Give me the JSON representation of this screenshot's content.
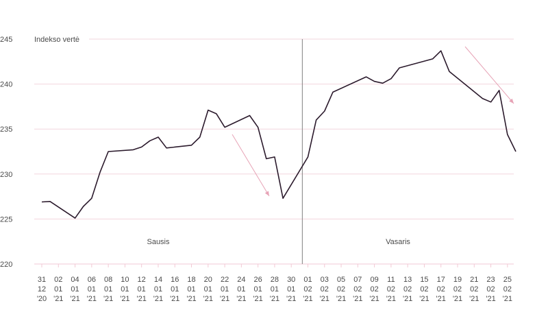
{
  "chart_data": {
    "type": "line",
    "ylabel": "Indekso vertė",
    "ylim": [
      220,
      245
    ],
    "y_ticks": [
      "220",
      "225",
      "230",
      "235",
      "240",
      "245"
    ],
    "grid": "horizontal",
    "x_tick_labels": [
      [
        "31",
        "12",
        "'20"
      ],
      [
        "02",
        "01",
        "'21"
      ],
      [
        "04",
        "01",
        "'21"
      ],
      [
        "06",
        "01",
        "'21"
      ],
      [
        "08",
        "01",
        "'21"
      ],
      [
        "10",
        "01",
        "'21"
      ],
      [
        "12",
        "01",
        "'21"
      ],
      [
        "14",
        "01",
        "'21"
      ],
      [
        "16",
        "01",
        "'21"
      ],
      [
        "18",
        "01",
        "'21"
      ],
      [
        "20",
        "01",
        "'21"
      ],
      [
        "22",
        "01",
        "'21"
      ],
      [
        "24",
        "01",
        "'21"
      ],
      [
        "26",
        "01",
        "'21"
      ],
      [
        "28",
        "01",
        "'21"
      ],
      [
        "30",
        "01",
        "'21"
      ],
      [
        "01",
        "02",
        "'21"
      ],
      [
        "03",
        "02",
        "'21"
      ],
      [
        "05",
        "02",
        "'21"
      ],
      [
        "07",
        "02",
        "'21"
      ],
      [
        "09",
        "02",
        "'21"
      ],
      [
        "11",
        "02",
        "'21"
      ],
      [
        "13",
        "02",
        "'21"
      ],
      [
        "15",
        "02",
        "'21"
      ],
      [
        "17",
        "02",
        "'21"
      ],
      [
        "19",
        "02",
        "'21"
      ],
      [
        "21",
        "02",
        "'21"
      ],
      [
        "23",
        "02",
        "'21"
      ],
      [
        "25",
        "02",
        "'21"
      ]
    ],
    "series": [
      {
        "points": [
          [
            "2020-12-31",
            226.9
          ],
          [
            "2021-01-01",
            226.95
          ],
          [
            "2021-01-04",
            225.1
          ],
          [
            "2021-01-05",
            226.4
          ],
          [
            "2021-01-06",
            227.3
          ],
          [
            "2021-01-07",
            230.2
          ],
          [
            "2021-01-08",
            232.5
          ],
          [
            "2021-01-11",
            232.7
          ],
          [
            "2021-01-12",
            233.0
          ],
          [
            "2021-01-13",
            233.7
          ],
          [
            "2021-01-14",
            234.1
          ],
          [
            "2021-01-15",
            232.9
          ],
          [
            "2021-01-18",
            233.2
          ],
          [
            "2021-01-19",
            234.1
          ],
          [
            "2021-01-20",
            237.1
          ],
          [
            "2021-01-21",
            236.7
          ],
          [
            "2021-01-22",
            235.2
          ],
          [
            "2021-01-25",
            236.5
          ],
          [
            "2021-01-26",
            235.2
          ],
          [
            "2021-01-27",
            231.7
          ],
          [
            "2021-01-28",
            231.9
          ],
          [
            "2021-01-29",
            227.3
          ],
          [
            "2021-02-01",
            231.9
          ],
          [
            "2021-02-02",
            236.0
          ],
          [
            "2021-02-03",
            237.0
          ],
          [
            "2021-02-04",
            239.1
          ],
          [
            "2021-02-08",
            240.8
          ],
          [
            "2021-02-09",
            240.3
          ],
          [
            "2021-02-10",
            240.1
          ],
          [
            "2021-02-11",
            240.6
          ],
          [
            "2021-02-12",
            241.8
          ],
          [
            "2021-02-16",
            242.8
          ],
          [
            "2021-02-17",
            243.7
          ],
          [
            "2021-02-18",
            241.4
          ],
          [
            "2021-02-22",
            238.4
          ],
          [
            "2021-02-23",
            238.0
          ],
          [
            "2021-02-24",
            239.3
          ],
          [
            "2021-02-25",
            234.4
          ],
          [
            "2021-02-26",
            232.5
          ]
        ]
      }
    ],
    "annotations": [
      {
        "text": "Sausis"
      },
      {
        "text": "Vasaris"
      }
    ],
    "colors": {
      "line": "#2b1a2c",
      "grid": "#f2d5dd",
      "arrow": "#e7a3b6",
      "divider": "#808080"
    }
  }
}
